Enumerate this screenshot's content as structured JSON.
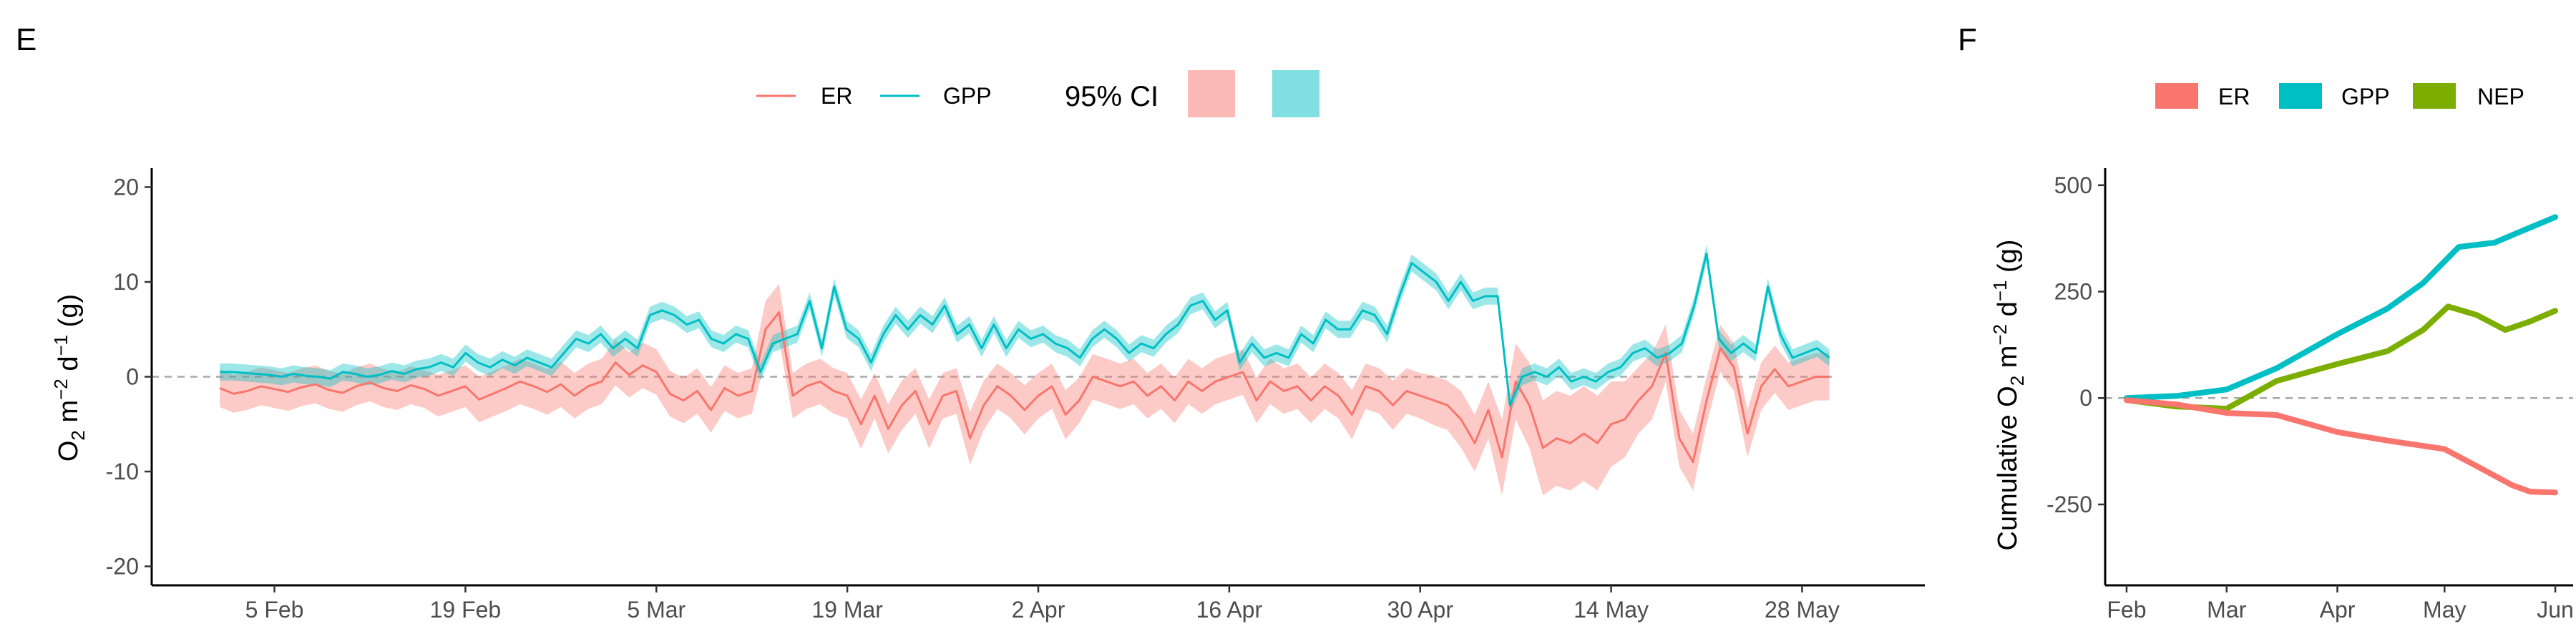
{
  "colors": {
    "er": "#F8766D",
    "gpp": "#00BFC4",
    "nep": "#7CAE00",
    "er_ci": "#F8766D",
    "gpp_ci": "#00BFC4",
    "zero_line": "#AAAAAA",
    "axis": "#000000",
    "text": "#333333"
  },
  "panelE": {
    "label": "E",
    "legend": {
      "er": "ER",
      "gpp": "GPP",
      "ci_title": "95% CI"
    },
    "y_label_html": "O₂ m⁻² d⁻¹ (g)",
    "y_label_parts": [
      "O",
      "2",
      " m",
      "−2",
      " d",
      "−1",
      " (g)"
    ]
  },
  "panelF": {
    "label": "F",
    "legend": {
      "er": "ER",
      "gpp": "GPP",
      "nep": "NEP"
    },
    "y_label_parts": [
      "Cumulative O",
      "2",
      " m",
      "−2",
      " d",
      "−1",
      " (g)"
    ]
  },
  "chart_data": [
    {
      "type": "line",
      "panel": "E",
      "x_type": "date",
      "xlim": [
        "2023-01-27",
        "2023-06-06"
      ],
      "ylim": [
        -22,
        22
      ],
      "y_ticks": [
        -20,
        -10,
        0,
        10,
        20
      ],
      "x_ticks": [
        {
          "date": "2023-02-05",
          "label": "5 Feb"
        },
        {
          "date": "2023-02-19",
          "label": "19 Feb"
        },
        {
          "date": "2023-03-05",
          "label": "5 Mar"
        },
        {
          "date": "2023-03-19",
          "label": "19 Mar"
        },
        {
          "date": "2023-04-02",
          "label": "2 Apr"
        },
        {
          "date": "2023-04-16",
          "label": "16 Apr"
        },
        {
          "date": "2023-04-30",
          "label": "30 Apr"
        },
        {
          "date": "2023-05-14",
          "label": "14 May"
        },
        {
          "date": "2023-05-28",
          "label": "28 May"
        }
      ],
      "reference_line": 0,
      "start_date": "2023-02-01",
      "series": [
        {
          "name": "ER",
          "values": [
            -1.2,
            -1.8,
            -1.5,
            -1.0,
            -1.3,
            -1.6,
            -1.1,
            -0.8,
            -1.4,
            -1.7,
            -1.0,
            -0.6,
            -1.2,
            -1.5,
            -0.9,
            -1.3,
            -2.0,
            -1.5,
            -1.0,
            -2.4,
            -1.8,
            -1.2,
            -0.5,
            -1.0,
            -1.6,
            -0.8,
            -2.0,
            -1.0,
            -0.5,
            1.5,
            0.2,
            1.2,
            0.5,
            -1.8,
            -2.5,
            -1.5,
            -3.5,
            -1.2,
            -2.0,
            -1.5,
            5.0,
            6.8,
            -2.0,
            -1.0,
            -0.5,
            -1.5,
            -2.0,
            -5.0,
            -2.0,
            -5.5,
            -3.0,
            -1.5,
            -5.0,
            -2.0,
            -1.5,
            -6.5,
            -3.0,
            -1.0,
            -2.0,
            -3.5,
            -2.0,
            -1.0,
            -4.0,
            -2.5,
            0.0,
            -0.5,
            -1.0,
            -0.5,
            -2.0,
            -1.0,
            -2.5,
            -0.5,
            -1.5,
            -0.5,
            0.0,
            0.5,
            -2.5,
            -0.5,
            -1.5,
            -1.0,
            -2.5,
            -1.0,
            -2.0,
            -4.0,
            -1.0,
            -1.5,
            -3.0,
            -1.5,
            -2.0,
            -2.5,
            -3.0,
            -4.5,
            -7.0,
            -3.5,
            -8.5,
            -0.5,
            -3.0,
            -7.5,
            -6.5,
            -7.0,
            -6.0,
            -7.0,
            -5.0,
            -4.5,
            -2.5,
            -1.0,
            2.5,
            -6.5,
            -9.0,
            -2.5,
            3.0,
            1.0,
            -6.0,
            -1.0,
            0.8,
            -1.0,
            -0.5,
            0.0,
            0.0
          ],
          "ci_half_width": [
            2.0,
            2.0,
            2.0,
            2.0,
            2.0,
            2.0,
            2.0,
            2.0,
            2.0,
            2.0,
            2.0,
            2.0,
            2.0,
            2.0,
            2.0,
            2.0,
            2.2,
            2.2,
            2.2,
            2.4,
            2.4,
            2.4,
            2.4,
            2.4,
            2.4,
            2.4,
            2.4,
            2.4,
            2.4,
            2.4,
            2.4,
            2.4,
            2.4,
            2.4,
            2.4,
            2.4,
            2.4,
            2.4,
            2.4,
            2.4,
            3.0,
            3.0,
            2.4,
            2.4,
            2.4,
            2.4,
            2.4,
            2.6,
            2.4,
            2.6,
            2.6,
            2.4,
            2.6,
            2.4,
            2.4,
            2.8,
            2.6,
            2.4,
            2.4,
            2.6,
            2.4,
            2.4,
            2.6,
            2.4,
            2.4,
            2.4,
            2.4,
            2.4,
            2.4,
            2.4,
            2.4,
            2.4,
            2.4,
            2.4,
            2.4,
            2.4,
            2.4,
            2.4,
            2.4,
            2.4,
            2.4,
            2.4,
            2.4,
            2.6,
            2.4,
            2.4,
            2.6,
            2.4,
            2.4,
            2.6,
            2.6,
            3.0,
            3.0,
            3.0,
            4.0,
            4.0,
            4.5,
            5.0,
            5.0,
            5.0,
            5.0,
            5.0,
            4.5,
            4.0,
            3.5,
            3.5,
            3.0,
            3.0,
            3.0,
            2.5,
            2.5,
            2.5,
            2.5,
            2.5,
            2.5,
            2.5,
            2.5,
            2.5,
            2.5
          ]
        },
        {
          "name": "GPP",
          "values": [
            0.5,
            0.5,
            0.4,
            0.3,
            0.2,
            0.0,
            0.3,
            0.1,
            0.0,
            -0.2,
            0.5,
            0.3,
            0.0,
            0.2,
            0.6,
            0.3,
            0.8,
            1.0,
            1.5,
            1.0,
            2.5,
            1.5,
            1.0,
            1.8,
            1.2,
            2.0,
            1.5,
            1.0,
            2.5,
            4.0,
            3.5,
            4.5,
            3.0,
            4.0,
            3.0,
            6.5,
            7.0,
            6.5,
            5.5,
            6.0,
            4.0,
            3.5,
            4.5,
            4.0,
            0.5,
            3.5,
            4.0,
            4.5,
            8.0,
            3.0,
            9.5,
            5.0,
            4.0,
            1.5,
            4.5,
            6.5,
            5.0,
            6.5,
            5.5,
            7.5,
            4.5,
            5.5,
            3.0,
            5.5,
            3.0,
            5.0,
            4.0,
            4.5,
            3.5,
            3.0,
            2.0,
            4.0,
            5.0,
            4.0,
            2.5,
            3.5,
            3.0,
            4.5,
            5.5,
            7.5,
            8.0,
            6.0,
            7.0,
            1.5,
            3.5,
            2.0,
            2.5,
            2.0,
            4.5,
            3.5,
            6.0,
            5.0,
            5.0,
            7.0,
            6.5,
            4.5,
            8.5,
            12.0,
            11.0,
            10.0,
            8.0,
            10.0,
            8.0,
            8.5,
            8.5,
            -3.0,
            0.0,
            0.5,
            0.0,
            1.0,
            -0.5,
            0.0,
            -0.5,
            0.5,
            1.0,
            2.5,
            3.0,
            2.0,
            2.5,
            3.5,
            7.5,
            13.0,
            4.0,
            2.5,
            3.5,
            2.5,
            9.5,
            4.5,
            2.0,
            2.5,
            3.0,
            2.0
          ],
          "ci_half_width": [
            0.9,
            0.9,
            0.9,
            0.9,
            0.9,
            0.9,
            0.9,
            0.9,
            0.9,
            0.9,
            0.9,
            0.9,
            0.9,
            0.9,
            0.9,
            0.9,
            0.9,
            0.9,
            0.9,
            0.9,
            0.9,
            0.9,
            0.9,
            0.9,
            0.9,
            0.9,
            0.9,
            0.9,
            0.9,
            0.9,
            0.9,
            0.9,
            0.9,
            0.9,
            0.9,
            0.9,
            0.9,
            0.9,
            0.9,
            0.9,
            0.9,
            0.9,
            0.9,
            0.9,
            0.9,
            0.9,
            0.9,
            0.9,
            0.9,
            0.9,
            0.9,
            0.9,
            0.9,
            0.9,
            0.9,
            0.9,
            0.9,
            0.9,
            0.9,
            0.9,
            0.9,
            0.9,
            0.9,
            0.9,
            0.9,
            0.9,
            0.9,
            0.9,
            0.9,
            0.9,
            0.9,
            0.9,
            0.9,
            0.9,
            0.9,
            0.9,
            0.9,
            0.9,
            0.9,
            0.9,
            0.9,
            0.9,
            0.9,
            0.9,
            0.9,
            0.9,
            0.9,
            0.9,
            0.9,
            0.9,
            0.9,
            0.9,
            0.9,
            0.9,
            0.9,
            0.9,
            0.9,
            0.9,
            0.9,
            0.9,
            0.9,
            0.9,
            0.9,
            0.9,
            0.9,
            0.9,
            0.9,
            0.9,
            0.9,
            0.9,
            0.9,
            0.9,
            0.9,
            0.9,
            0.9,
            0.9,
            0.9,
            0.9,
            0.9,
            0.9,
            0.9,
            0.9,
            0.9,
            0.9,
            0.9,
            0.9,
            0.9,
            0.9,
            0.9,
            0.9,
            0.9,
            0.9
          ]
        }
      ]
    },
    {
      "type": "line",
      "panel": "F",
      "x_type": "date",
      "xlim": [
        "2023-01-26",
        "2023-06-06"
      ],
      "ylim": [
        -440,
        540
      ],
      "y_ticks": [
        -250,
        0,
        250,
        500
      ],
      "x_ticks": [
        {
          "date": "2023-02-01",
          "label": "Feb"
        },
        {
          "date": "2023-03-01",
          "label": "Mar"
        },
        {
          "date": "2023-04-01",
          "label": "Apr"
        },
        {
          "date": "2023-05-01",
          "label": "May"
        },
        {
          "date": "2023-06-01",
          "label": "Jun"
        }
      ],
      "reference_line": 0,
      "series": [
        {
          "name": "GPP",
          "points": [
            [
              "2023-02-01",
              0
            ],
            [
              "2023-02-15",
              5
            ],
            [
              "2023-03-01",
              20
            ],
            [
              "2023-03-15",
              70
            ],
            [
              "2023-04-01",
              150
            ],
            [
              "2023-04-15",
              210
            ],
            [
              "2023-04-25",
              270
            ],
            [
              "2023-05-05",
              355
            ],
            [
              "2023-05-15",
              365
            ],
            [
              "2023-05-22",
              390
            ],
            [
              "2023-06-01",
              425
            ]
          ]
        },
        {
          "name": "NEP",
          "points": [
            [
              "2023-02-01",
              -5
            ],
            [
              "2023-02-15",
              -20
            ],
            [
              "2023-03-01",
              -25
            ],
            [
              "2023-03-15",
              40
            ],
            [
              "2023-04-01",
              80
            ],
            [
              "2023-04-15",
              110
            ],
            [
              "2023-04-25",
              160
            ],
            [
              "2023-05-02",
              215
            ],
            [
              "2023-05-10",
              195
            ],
            [
              "2023-05-18",
              160
            ],
            [
              "2023-05-25",
              180
            ],
            [
              "2023-06-01",
              205
            ]
          ]
        },
        {
          "name": "ER",
          "points": [
            [
              "2023-02-01",
              -5
            ],
            [
              "2023-02-15",
              -15
            ],
            [
              "2023-03-01",
              -35
            ],
            [
              "2023-03-15",
              -40
            ],
            [
              "2023-04-01",
              -80
            ],
            [
              "2023-04-15",
              -100
            ],
            [
              "2023-05-01",
              -120
            ],
            [
              "2023-05-10",
              -160
            ],
            [
              "2023-05-20",
              -205
            ],
            [
              "2023-05-25",
              -220
            ],
            [
              "2023-06-01",
              -222
            ]
          ]
        }
      ]
    }
  ]
}
